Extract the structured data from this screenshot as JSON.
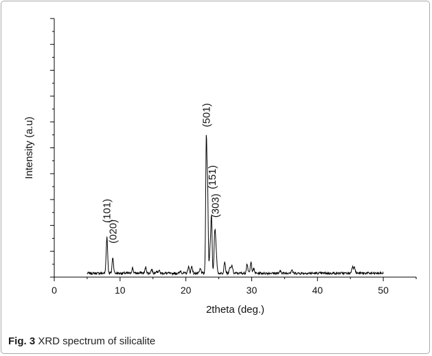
{
  "figure": {
    "label": "Fig. 3",
    "caption": "XRD spectrum of silicalite"
  },
  "chart_data": {
    "type": "line",
    "title": "",
    "xlabel": "2theta (deg.)",
    "ylabel": "Intensity (a.u)",
    "xlim": [
      0,
      55
    ],
    "ylim": [
      0,
      100
    ],
    "xticks": [
      0,
      10,
      20,
      30,
      40,
      50
    ],
    "y_tick_labels": "none",
    "grid": false,
    "legend": "none",
    "line_color": "#000000",
    "peaks": [
      {
        "x": 8.0,
        "y": 15.6
      },
      {
        "x": 8.9,
        "y": 7.6
      },
      {
        "x": 11.9,
        "y": 3.5
      },
      {
        "x": 13.2,
        "y": 1.8
      },
      {
        "x": 13.9,
        "y": 3.8
      },
      {
        "x": 14.8,
        "y": 3.0
      },
      {
        "x": 15.5,
        "y": 2.4
      },
      {
        "x": 15.9,
        "y": 2.6
      },
      {
        "x": 17.3,
        "y": 1.5
      },
      {
        "x": 17.8,
        "y": 1.2
      },
      {
        "x": 19.2,
        "y": 2.4
      },
      {
        "x": 20.4,
        "y": 4.0
      },
      {
        "x": 20.9,
        "y": 4.2
      },
      {
        "x": 22.2,
        "y": 3.2
      },
      {
        "x": 23.1,
        "y": 52.5
      },
      {
        "x": 23.3,
        "y": 34.0
      },
      {
        "x": 23.7,
        "y": 12.0
      },
      {
        "x": 23.9,
        "y": 22.0
      },
      {
        "x": 24.4,
        "y": 17.0
      },
      {
        "x": 24.6,
        "y": 9.0
      },
      {
        "x": 25.9,
        "y": 6.0
      },
      {
        "x": 26.7,
        "y": 3.5
      },
      {
        "x": 27.0,
        "y": 4.5
      },
      {
        "x": 29.3,
        "y": 5.2
      },
      {
        "x": 29.9,
        "y": 5.6
      },
      {
        "x": 30.3,
        "y": 3.2
      },
      {
        "x": 32.8,
        "y": 1.6
      },
      {
        "x": 34.4,
        "y": 2.4
      },
      {
        "x": 35.7,
        "y": 1.8
      },
      {
        "x": 36.1,
        "y": 2.8
      },
      {
        "x": 37.3,
        "y": 1.5
      },
      {
        "x": 45.3,
        "y": 4.0
      },
      {
        "x": 45.6,
        "y": 4.2
      },
      {
        "x": 47.5,
        "y": 1.6
      },
      {
        "x": 48.6,
        "y": 1.4
      }
    ],
    "x_range": [
      5,
      50
    ],
    "baseline_y": 1.5,
    "annotations": [
      {
        "text": "(101)",
        "x": 8.0,
        "y": 21.0
      },
      {
        "text": "(020)",
        "x": 8.9,
        "y": 13.0
      },
      {
        "text": "(501)",
        "x": 23.1,
        "y": 58.0
      },
      {
        "text": "(151)",
        "x": 24.0,
        "y": 34.0
      },
      {
        "text": "(303)",
        "x": 24.5,
        "y": 23.0
      }
    ]
  }
}
